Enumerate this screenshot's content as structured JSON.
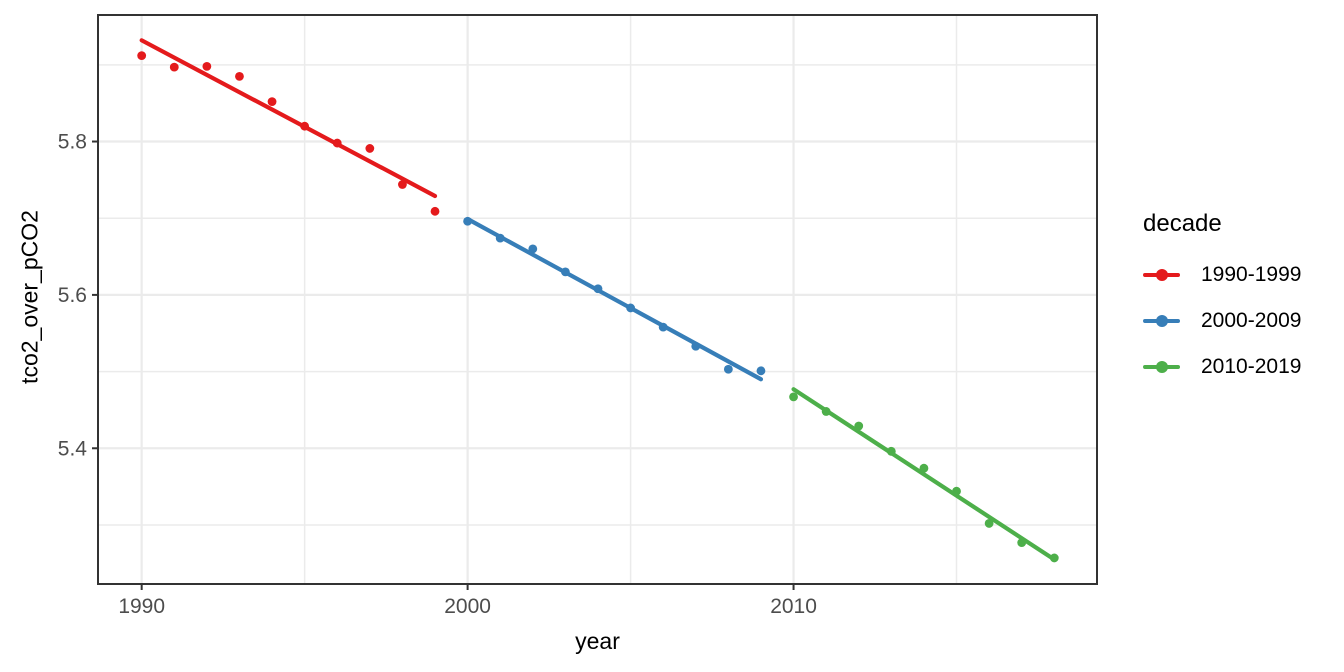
{
  "chart_data": {
    "type": "scatter",
    "title": "",
    "xlabel": "year",
    "ylabel": "tco2_over_pCO2",
    "legend_title": "decade",
    "legend_position": "right",
    "grid": true,
    "xlim": [
      1988.66,
      2019.31
    ],
    "ylim": [
      5.223,
      5.965
    ],
    "x_major_ticks": [
      1990,
      2000,
      2010
    ],
    "x_tick_labels": [
      "1990",
      "2000",
      "2010"
    ],
    "x_minor_ticks": [
      1995,
      2005,
      2015
    ],
    "y_major_ticks": [
      5.4,
      5.6,
      5.8
    ],
    "y_tick_labels": [
      "5.4",
      "5.6",
      "5.8"
    ],
    "y_minor_ticks": [
      5.3,
      5.5,
      5.7,
      5.9
    ],
    "series": [
      {
        "name": "1990-1999",
        "color": "#E41A1C",
        "x": [
          1990,
          1991,
          1992,
          1993,
          1994,
          1995,
          1996,
          1997,
          1998,
          1999
        ],
        "y": [
          5.912,
          5.897,
          5.898,
          5.885,
          5.852,
          5.82,
          5.798,
          5.791,
          5.744,
          5.709
        ],
        "trend": {
          "x": [
            1990,
            1999
          ],
          "y": [
            5.932,
            5.729
          ]
        }
      },
      {
        "name": "2000-2009",
        "color": "#377EB8",
        "x": [
          2000,
          2001,
          2002,
          2003,
          2004,
          2005,
          2006,
          2007,
          2008,
          2009
        ],
        "y": [
          5.696,
          5.674,
          5.66,
          5.63,
          5.608,
          5.583,
          5.558,
          5.533,
          5.503,
          5.501
        ],
        "trend": {
          "x": [
            2000,
            2009
          ],
          "y": [
            5.699,
            5.49
          ]
        }
      },
      {
        "name": "2010-2019",
        "color": "#4DAF4A",
        "x": [
          2010,
          2011,
          2012,
          2013,
          2014,
          2015,
          2016,
          2017,
          2018
        ],
        "y": [
          5.467,
          5.448,
          5.429,
          5.396,
          5.374,
          5.344,
          5.302,
          5.277,
          5.257
        ],
        "trend": {
          "x": [
            2010,
            2018
          ],
          "y": [
            5.477,
            5.255
          ]
        }
      }
    ],
    "colors": {
      "grid": "#EBEBEB",
      "panel_border": "#333333",
      "tick_mark": "#333333",
      "tick_label": "#4D4D4D",
      "axis_title": "#000000",
      "background": "#FFFFFF"
    }
  }
}
